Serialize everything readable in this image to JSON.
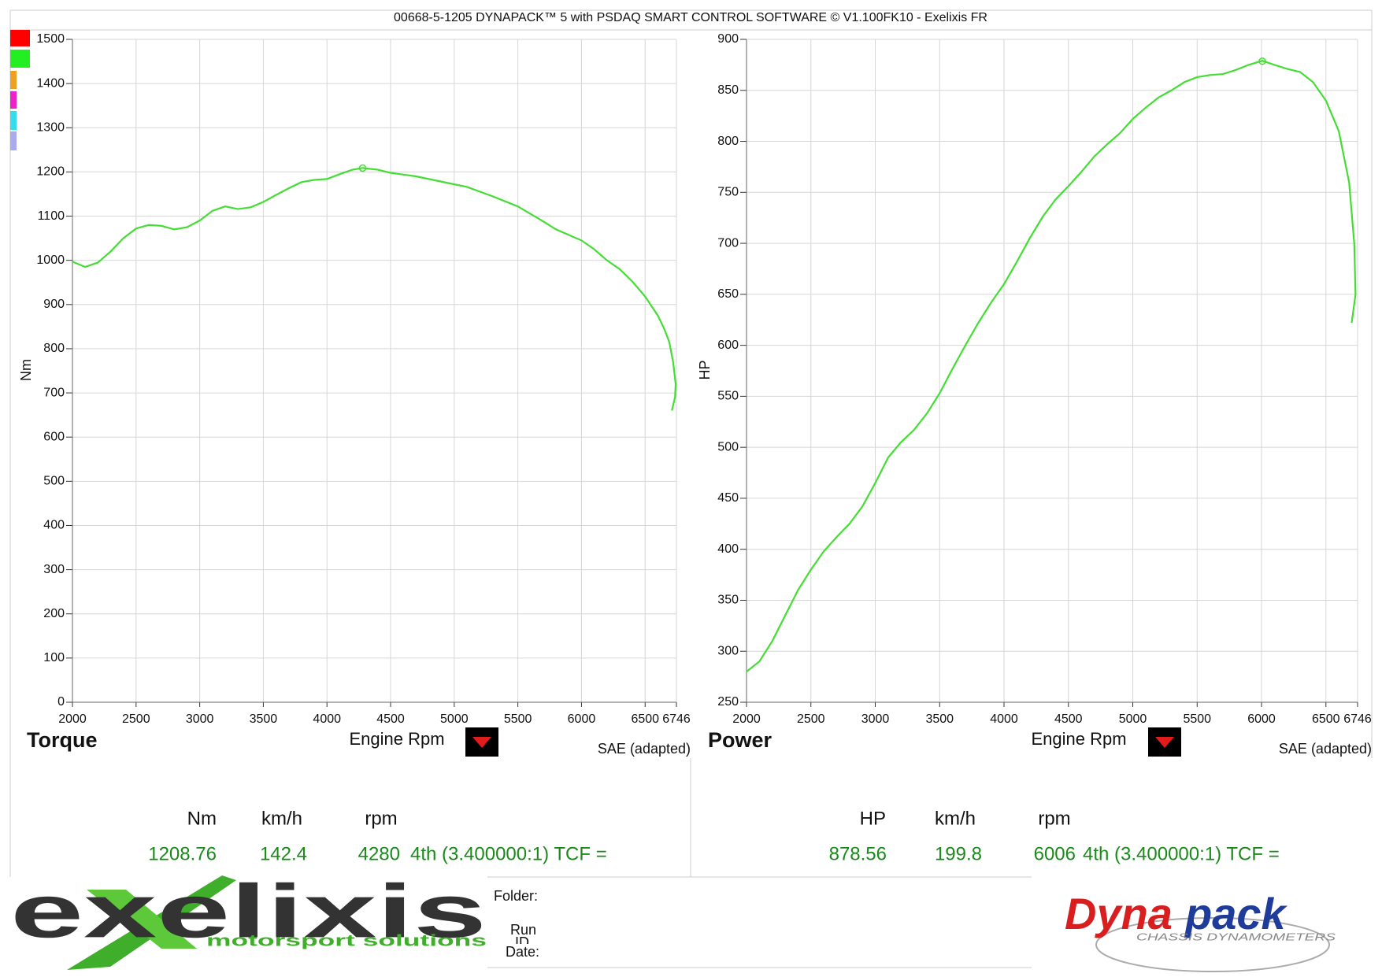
{
  "header": "00668-5-1205 DYNAPACK™ 5 with PSDAQ SMART CONTROL SOFTWARE © V1.100FK10 - Exelixis FR",
  "chart_data": [
    {
      "type": "line",
      "title": "Torque",
      "xlabel": "Engine Rpm",
      "ylabel": "Nm",
      "note": "SAE (adapted)",
      "x": [
        2000,
        2100,
        2200,
        2300,
        2400,
        2500,
        2600,
        2700,
        2800,
        2900,
        3000,
        3100,
        3200,
        3300,
        3400,
        3500,
        3600,
        3700,
        3800,
        3900,
        4000,
        4100,
        4200,
        4280,
        4400,
        4500,
        4700,
        4900,
        5100,
        5300,
        5500,
        5700,
        5800,
        6000,
        6100,
        6200,
        6300,
        6400,
        6500,
        6600,
        6650,
        6690,
        6720,
        6740,
        6735,
        6710
      ],
      "series": [
        {
          "color": "#44dd33",
          "values": [
            997,
            985,
            995,
            1020,
            1050,
            1072,
            1080,
            1078,
            1070,
            1075,
            1090,
            1112,
            1122,
            1116,
            1120,
            1132,
            1148,
            1163,
            1177,
            1182,
            1184,
            1195,
            1205,
            1209,
            1205,
            1198,
            1190,
            1178,
            1166,
            1145,
            1122,
            1088,
            1070,
            1045,
            1025,
            1000,
            980,
            952,
            918,
            875,
            845,
            815,
            770,
            720,
            690,
            660
          ]
        }
      ],
      "xlim": [
        2000,
        6746
      ],
      "xticks": [
        2000,
        2500,
        3000,
        3500,
        4000,
        4500,
        5000,
        5500,
        6000,
        6500,
        6746
      ],
      "ylim": [
        0,
        1500
      ],
      "yticks": [
        0,
        100,
        200,
        300,
        400,
        500,
        600,
        700,
        800,
        900,
        1000,
        1100,
        1200,
        1300,
        1400,
        1500
      ],
      "grid": true,
      "readout": {
        "labels": [
          "Nm",
          "km/h",
          "rpm"
        ],
        "values": [
          1208.76,
          142.4,
          4280
        ],
        "gear": "4th (3.400000:1) TCF ="
      }
    },
    {
      "type": "line",
      "title": "Power",
      "xlabel": "Engine Rpm",
      "ylabel": "HP",
      "note": "SAE (adapted)",
      "x": [
        2000,
        2100,
        2200,
        2300,
        2400,
        2500,
        2600,
        2700,
        2800,
        2900,
        3000,
        3100,
        3200,
        3300,
        3400,
        3500,
        3600,
        3700,
        3800,
        3900,
        4000,
        4100,
        4200,
        4300,
        4400,
        4500,
        4600,
        4700,
        4800,
        4900,
        5000,
        5100,
        5200,
        5300,
        5400,
        5500,
        5600,
        5700,
        5800,
        5900,
        6006,
        6100,
        6200,
        6300,
        6400,
        6500,
        6600,
        6680,
        6720,
        6730,
        6700
      ],
      "series": [
        {
          "color": "#44dd33",
          "values": [
            280,
            290,
            310,
            335,
            360,
            380,
            398,
            412,
            425,
            442,
            465,
            490,
            505,
            517,
            533,
            553,
            577,
            600,
            622,
            642,
            660,
            682,
            705,
            726,
            743,
            756,
            770,
            785,
            797,
            808,
            822,
            833,
            843,
            850,
            858,
            863,
            865,
            866,
            870,
            875,
            879,
            875,
            871,
            868,
            858,
            840,
            810,
            760,
            700,
            650,
            622
          ]
        }
      ],
      "xlim": [
        2000,
        6746
      ],
      "xticks": [
        2000,
        2500,
        3000,
        3500,
        4000,
        4500,
        5000,
        5500,
        6000,
        6500,
        6746
      ],
      "ylim": [
        250,
        900
      ],
      "yticks": [
        250,
        300,
        350,
        400,
        450,
        500,
        550,
        600,
        650,
        700,
        750,
        800,
        850,
        900
      ],
      "grid": true,
      "readout": {
        "labels": [
          "HP",
          "km/h",
          "rpm"
        ],
        "values": [
          878.56,
          199.8,
          6006
        ],
        "gear": "4th (3.400000:1) TCF ="
      }
    }
  ],
  "footer": {
    "folder": "Folder:",
    "run": "Run",
    "id": "ID",
    "date": "Date:"
  },
  "logos": {
    "left": "exelixis",
    "left_tagline": "motorsport solutions",
    "right_a": "Dyna",
    "right_b": "pack",
    "right_tagline": "CHASSIS DYNAMOMETERS"
  }
}
